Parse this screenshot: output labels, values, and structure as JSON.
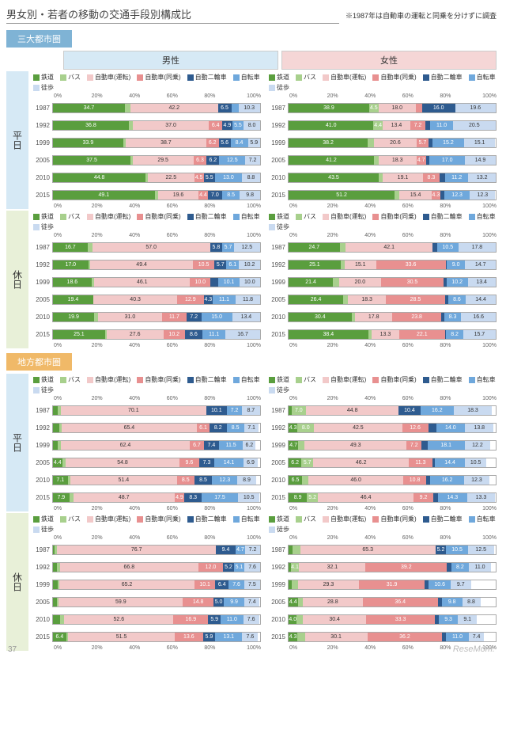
{
  "title": "男女別・若者の移動の交通手段別構成比",
  "note": "※1987年は自動車の運転と同乗を分けずに調査",
  "page_num": "37",
  "watermark": "ReseMom.",
  "regions": [
    {
      "key": "metro",
      "label": "三大都市圏",
      "class": "region-metro"
    },
    {
      "key": "local",
      "label": "地方都市圏",
      "class": "region-local"
    }
  ],
  "genders": [
    {
      "label": "男性",
      "class": "gender-m"
    },
    {
      "label": "女性",
      "class": "gender-f"
    }
  ],
  "modes": [
    {
      "name": "鉄道",
      "color": "#5a9e3e"
    },
    {
      "name": "バス",
      "color": "#a8d08d"
    },
    {
      "name": "自動車(運転)",
      "color": "#f2c9c9"
    },
    {
      "name": "自動車(同乗)",
      "color": "#e89090"
    },
    {
      "name": "自動二輪車",
      "color": "#2e5b8f"
    },
    {
      "name": "自転車",
      "color": "#6fa8dc"
    },
    {
      "name": "徒歩",
      "color": "#c9daf0"
    }
  ],
  "axis": [
    "0%",
    "20%",
    "40%",
    "60%",
    "80%",
    "100%"
  ],
  "years": [
    "1987",
    "1992",
    "1999",
    "2005",
    "2010",
    "2015"
  ],
  "day_types": [
    {
      "label": "平日",
      "class": "day-weekday"
    },
    {
      "label": "休日",
      "class": "day-holiday"
    }
  ],
  "data": {
    "metro": {
      "weekday": {
        "m": [
          [
            34.7,
            2.7,
            42.2,
            0,
            6.5,
            3.5,
            10.3
          ],
          [
            36.8,
            1.9,
            37.0,
            6.4,
            4.9,
            5.5,
            8.0
          ],
          [
            33.9,
            1.3,
            38.7,
            6.2,
            5.6,
            8.4,
            5.9
          ],
          [
            37.5,
            0.9,
            29.5,
            6.3,
            6.2,
            12.5,
            7.2
          ],
          [
            44.8,
            1.0,
            22.5,
            4.5,
            5.5,
            13.0,
            8.8
          ],
          [
            49.1,
            1.6,
            19.6,
            4.4,
            7.0,
            8.5,
            9.8
          ]
        ],
        "f": [
          [
            38.9,
            4.5,
            18.0,
            3.0,
            16.0,
            0,
            19.6
          ],
          [
            41.0,
            4.4,
            13.4,
            7.2,
            2.4,
            11.0,
            20.5
          ],
          [
            38.2,
            3.0,
            20.6,
            5.7,
            2.0,
            15.2,
            15.1
          ],
          [
            41.2,
            2.2,
            18.3,
            4.7,
            1.7,
            17.0,
            14.9
          ],
          [
            43.5,
            2.1,
            19.1,
            8.3,
            2.6,
            11.2,
            13.2
          ],
          [
            51.2,
            2.4,
            15.4,
            4.3,
            1.9,
            12.3,
            12.3
          ]
        ]
      },
      "holiday": {
        "m": [
          [
            16.7,
            2.2,
            57.0,
            0,
            5.8,
            5.7,
            12.5
          ],
          [
            17.0,
            1.1,
            49.4,
            10.5,
            5.7,
            6.1,
            10.2
          ],
          [
            18.6,
            1.4,
            46.1,
            10.0,
            3.8,
            10.1,
            10.0
          ],
          [
            19.4,
            0.2,
            40.3,
            12.9,
            4.3,
            11.1,
            11.8
          ],
          [
            19.9,
            1.8,
            31.0,
            11.7,
            7.2,
            15.0,
            13.4
          ],
          [
            25.1,
            0.7,
            27.6,
            10.2,
            8.6,
            11.1,
            16.7
          ]
        ],
        "f": [
          [
            24.7,
            2.8,
            42.1,
            0,
            2.0,
            10.5,
            17.8
          ],
          [
            25.1,
            2.0,
            15.1,
            33.6,
            0.5,
            9.0,
            14.7
          ],
          [
            21.4,
            3.1,
            20.0,
            30.5,
            1.3,
            10.2,
            13.4
          ],
          [
            26.4,
            2.3,
            18.3,
            28.5,
            1.5,
            8.6,
            14.4
          ],
          [
            30.4,
            1.8,
            17.8,
            23.8,
            1.3,
            8.3,
            16.6
          ],
          [
            38.4,
            1.7,
            13.3,
            22.1,
            0.6,
            8.2,
            15.7
          ]
        ]
      }
    },
    "local": {
      "weekday": {
        "m": [
          [
            2.1,
            1.7,
            70.1,
            0,
            10.1,
            7.2,
            8.7
          ],
          [
            3.1,
            1.0,
            65.4,
            6.1,
            8.2,
            8.5,
            7.1
          ],
          [
            2.4,
            1.3,
            62.4,
            6.7,
            7.4,
            11.5,
            6.2
          ],
          [
            4.4,
            1.8,
            54.8,
            9.6,
            7.3,
            14.1,
            6.9
          ],
          [
            7.1,
            1.3,
            51.4,
            8.5,
            8.5,
            12.3,
            8.9
          ],
          [
            7.9,
            2.0,
            48.7,
            4.9,
            8.3,
            17.5,
            10.5
          ]
        ],
        "f": [
          [
            1.4,
            7.0,
            44.8,
            0,
            10.4,
            16.2,
            18.3
          ],
          [
            4.3,
            8.0,
            42.5,
            12.6,
            3.8,
            14.0,
            13.8
          ],
          [
            4.7,
            3.0,
            49.3,
            7.2,
            2.8,
            18.1,
            12.2
          ],
          [
            6.2,
            5.7,
            46.2,
            11.3,
            1.3,
            14.4,
            10.5
          ],
          [
            6.5,
            3.0,
            46.0,
            10.8,
            2.2,
            16.2,
            12.3
          ],
          [
            8.9,
            5.2,
            46.4,
            9.2,
            2.3,
            14.3,
            13.3
          ]
        ]
      },
      "holiday": {
        "m": [
          [
            0.9,
            1.1,
            76.7,
            0,
            9.4,
            4.7,
            7.2
          ],
          [
            2.0,
            1.4,
            66.8,
            12.0,
            5.2,
            5.1,
            7.6
          ],
          [
            2.1,
            1.0,
            65.2,
            10.1,
            6.4,
            7.6,
            7.5
          ],
          [
            2.0,
            0.8,
            59.9,
            14.8,
            5.0,
            9.9,
            7.4
          ],
          [
            3.5,
            2.0,
            52.6,
            16.9,
            5.9,
            11.0,
            7.6
          ],
          [
            6.4,
            0.9,
            51.5,
            13.6,
            5.9,
            13.1,
            7.6
          ]
        ],
        "f": [
          [
            1.8,
            3.8,
            65.3,
            0,
            5.2,
            10.5,
            12.5
          ],
          [
            1.0,
            4.1,
            32.1,
            39.2,
            2.3,
            8.2,
            11.0
          ],
          [
            1.4,
            3.2,
            29.3,
            31.9,
            1.9,
            10.6,
            9.7
          ],
          [
            4.4,
            2.5,
            28.8,
            36.4,
            1.9,
            9.8,
            8.8
          ],
          [
            4.0,
            3.0,
            30.4,
            33.3,
            1.8,
            9.3,
            9.1
          ],
          [
            4.3,
            3.6,
            30.1,
            36.2,
            1.8,
            11.0,
            7.4
          ]
        ]
      }
    }
  }
}
